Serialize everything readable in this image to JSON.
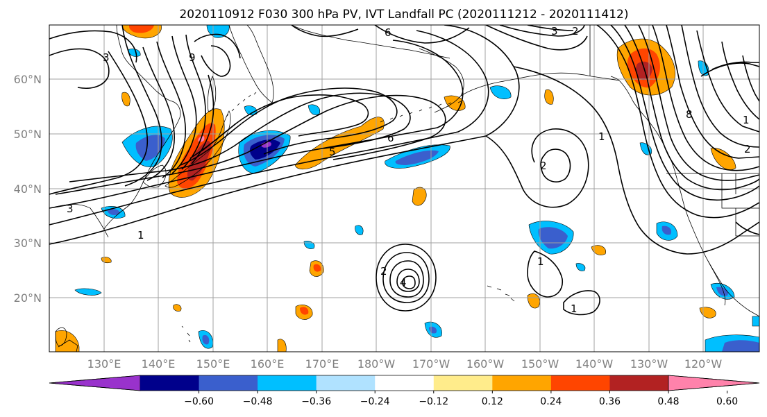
{
  "title": "2020110912 F030 300 hPa PV, IVT Landfall PC (2020111212 - 2020111412)",
  "latitude_labels": [
    "60°N",
    "50°N",
    "40°N",
    "30°N",
    "20°N"
  ],
  "longitude_labels": [
    "130°E",
    "140°E",
    "150°E",
    "160°E",
    "170°E",
    "180°W",
    "170°W",
    "160°W",
    "150°W",
    "140°W",
    "130°W",
    "120°W"
  ],
  "colorbar": {
    "ticks": [
      "−0.60",
      "−0.48",
      "−0.36",
      "−0.24",
      "−0.12",
      "0.12",
      "0.24",
      "0.36",
      "0.48",
      "0.60"
    ],
    "colors": [
      "#9932cc",
      "#00008b",
      "#3a5fcd",
      "#00bfff",
      "#b0e2ff",
      "#ffffff",
      "#ffec8b",
      "#ffa500",
      "#ff4500",
      "#b22222",
      "#ff82ab"
    ]
  },
  "contour_labels": [
    "1",
    "1",
    "1",
    "1",
    "1",
    "2",
    "2",
    "2",
    "2",
    "3",
    "3",
    "3",
    "4",
    "5",
    "6",
    "6",
    "8",
    "9"
  ],
  "colors": {
    "grid": "#a0a0a0",
    "coast": "#000000",
    "contour": "#000000"
  }
}
